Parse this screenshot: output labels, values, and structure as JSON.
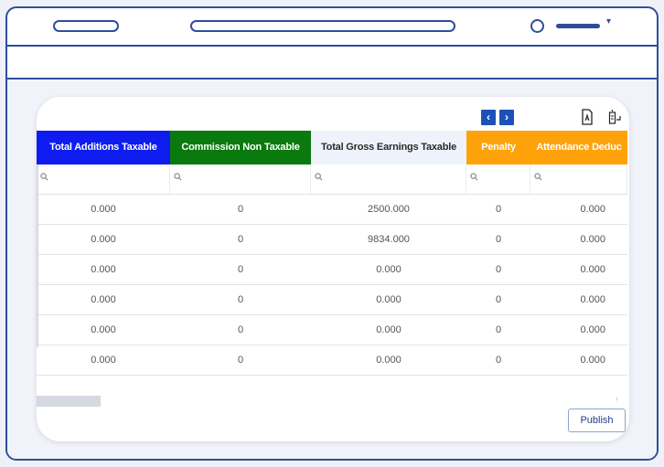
{
  "toolbar": {
    "prev_glyph": "‹",
    "next_glyph": "›",
    "export_pdf_icon": "pdf-export-icon",
    "export_icon": "export-icon"
  },
  "table": {
    "columns": [
      {
        "label": "Total Additions Taxable",
        "bg": "#0f1cf0",
        "fg": "#ffffff"
      },
      {
        "label": "Commission Non Taxable",
        "bg": "#0a7a0e",
        "fg": "#ffffff"
      },
      {
        "label": "Total Gross Earnings Taxable",
        "bg": "#eef3fb",
        "fg": "#2a2a2a"
      },
      {
        "label": "Penalty",
        "bg": "#ffa20a",
        "fg": "#ffffff"
      },
      {
        "label": "Attendance Deduc",
        "bg": "#ffa20a",
        "fg": "#ffffff"
      }
    ],
    "rows": [
      [
        "0.000",
        "0",
        "2500.000",
        "0",
        "0.000"
      ],
      [
        "0.000",
        "0",
        "9834.000",
        "0",
        "0.000"
      ],
      [
        "0.000",
        "0",
        "0.000",
        "0",
        "0.000"
      ],
      [
        "0.000",
        "0",
        "0.000",
        "0",
        "0.000"
      ],
      [
        "0.000",
        "0",
        "0.000",
        "0",
        "0.000"
      ],
      [
        "0.000",
        "0",
        "0.000",
        "0",
        "0.000"
      ]
    ]
  },
  "publish_label": "Publish",
  "colors": {
    "frame": "#2e4e9c",
    "nav_button": "#1c52b8"
  }
}
